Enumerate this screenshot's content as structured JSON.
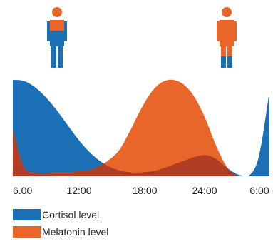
{
  "chart_data": {
    "type": "area",
    "title": "",
    "xlabel": "",
    "ylabel": "",
    "x_ticks": [
      "6.00",
      "12:00",
      "18:00",
      "24:00",
      "6:00"
    ],
    "x_hours": [
      0,
      1,
      2,
      3,
      4,
      5,
      6,
      7,
      8,
      9,
      10,
      11,
      12,
      13,
      14,
      15,
      16,
      17,
      18,
      19,
      20,
      21,
      22,
      23,
      24
    ],
    "ylim": [
      0,
      100
    ],
    "grid": false,
    "legend_position": "bottom-left",
    "series": [
      {
        "name": "Cortisol level",
        "color": "#1a6fb5",
        "values": [
          100,
          99,
          93,
          83,
          70,
          55,
          40,
          27,
          17,
          10,
          6,
          4,
          4,
          5,
          8,
          12,
          16,
          20,
          22,
          18,
          9,
          2,
          0,
          20,
          88
        ]
      },
      {
        "name": "Melatonin level",
        "color": "#e8662a",
        "values": [
          48,
          10,
          4,
          3,
          4,
          4,
          5,
          6,
          10,
          17,
          28,
          48,
          70,
          88,
          98,
          100,
          95,
          82,
          60,
          32,
          10,
          0,
          0,
          0,
          0
        ]
      }
    ],
    "overlap_color": "#b03d24",
    "icons": [
      "person-blue-icon",
      "person-orange-icon"
    ]
  }
}
